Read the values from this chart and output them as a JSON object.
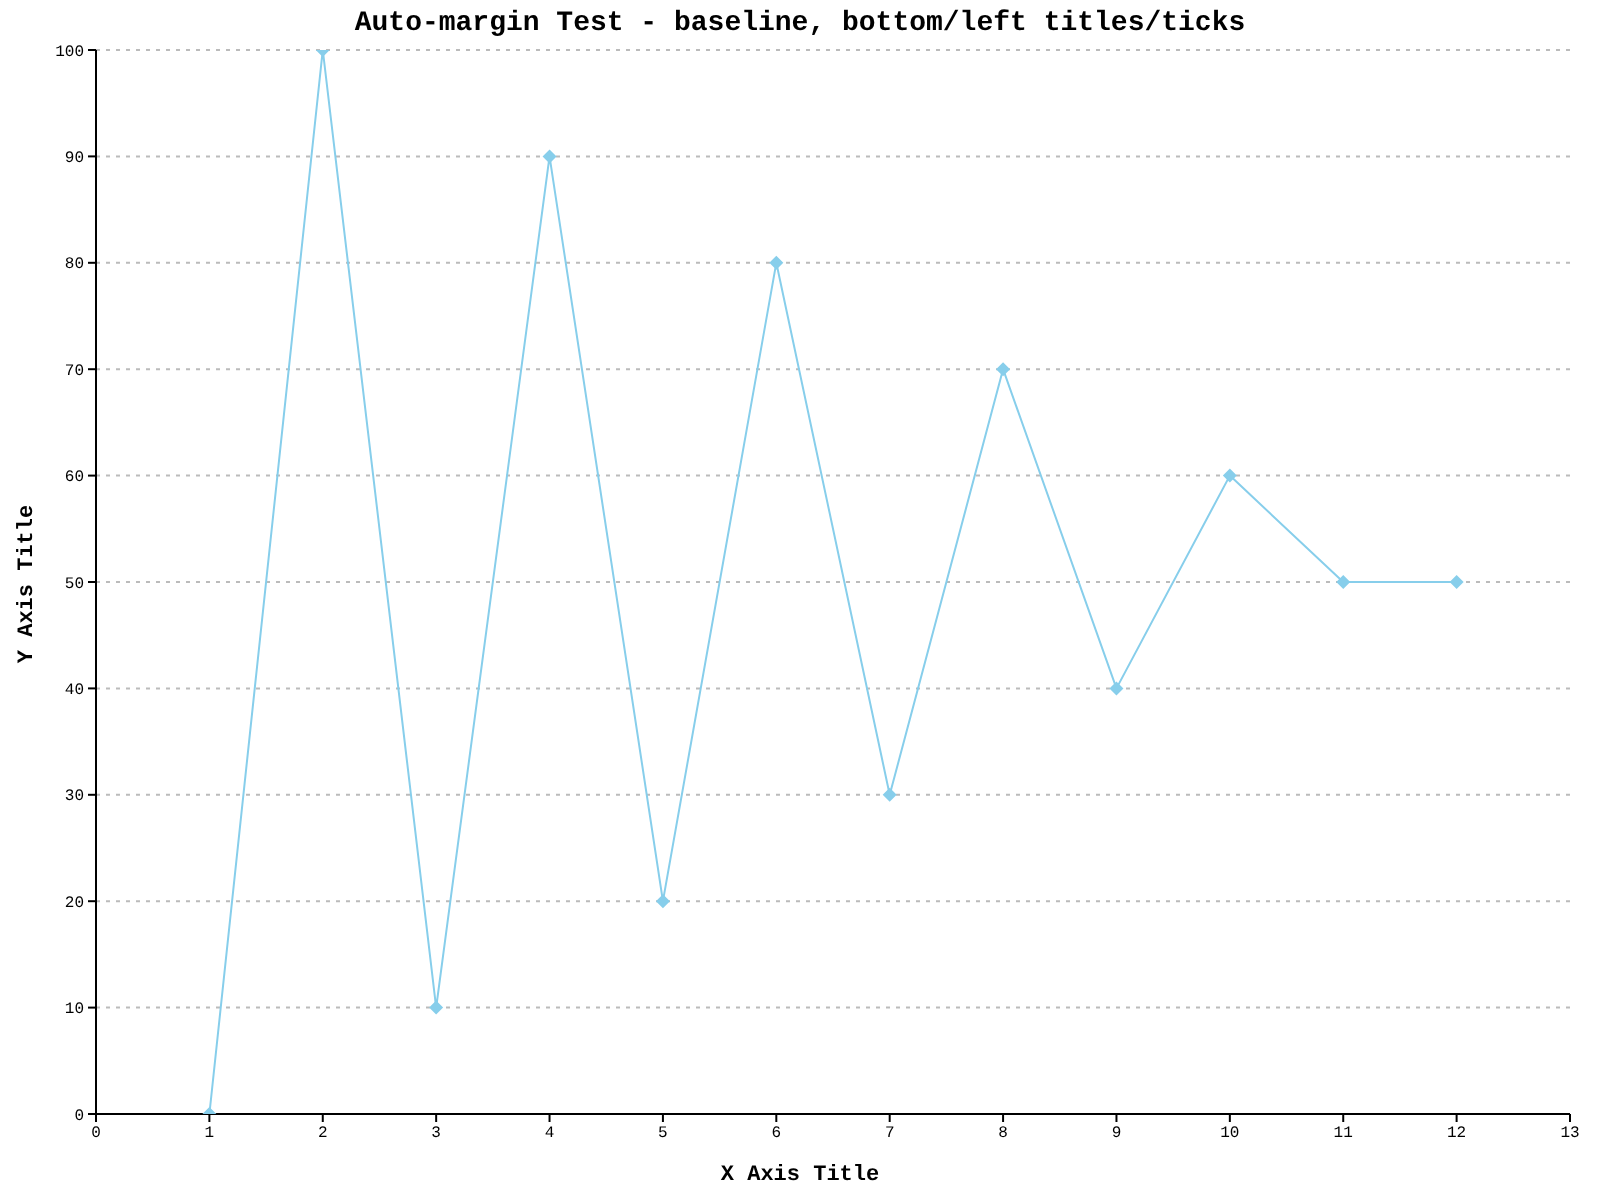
{
  "chart_data": {
    "type": "line",
    "title": "Auto-margin Test - baseline, bottom/left titles/ticks",
    "xlabel": "X Axis Title",
    "ylabel": "Y Axis Title",
    "x": [
      1,
      2,
      3,
      4,
      5,
      6,
      7,
      8,
      9,
      10,
      11,
      12
    ],
    "series": [
      {
        "color": "#87ceeb",
        "values": [
          0,
          100,
          10,
          90,
          20,
          80,
          30,
          70,
          40,
          60,
          50,
          50
        ]
      }
    ],
    "xlim": [
      0,
      13
    ],
    "xticks": [
      0,
      1,
      2,
      3,
      4,
      5,
      6,
      7,
      8,
      9,
      10,
      11,
      12,
      13
    ],
    "ylim": [
      0,
      100
    ],
    "yticks": [
      0,
      10,
      20,
      30,
      40,
      50,
      60,
      70,
      80,
      90,
      100
    ],
    "grid": "y",
    "marker": "diamond",
    "line_style": "solid",
    "legend": false
  }
}
